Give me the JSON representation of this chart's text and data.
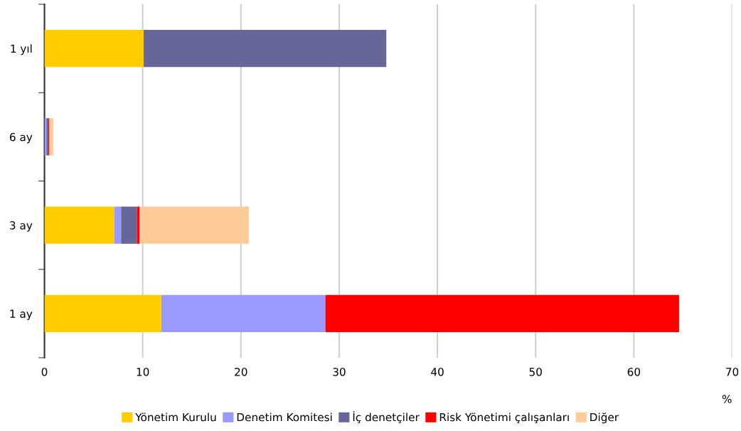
{
  "chart_data": {
    "type": "bar",
    "orientation": "horizontal",
    "stacked": true,
    "categories": [
      "1 yıl",
      "6 ay",
      "3 ay",
      "1 ay"
    ],
    "series": [
      {
        "name": "Yönetim Kurulu",
        "color": "#ffcc00",
        "values": [
          10.1,
          0,
          7.1,
          11.9
        ]
      },
      {
        "name": "Denetim Komitesi",
        "color": "#9999ff",
        "values": [
          0,
          0.2,
          0.7,
          16.7
        ]
      },
      {
        "name": "İç denetçiler",
        "color": "#666699",
        "values": [
          24.7,
          0.2,
          1.6,
          0
        ]
      },
      {
        "name": "Risk Yönetimi çalışanları",
        "color": "#ff0000",
        "values": [
          0,
          0.1,
          0.3,
          36.0
        ]
      },
      {
        "name": "Diğer",
        "color": "#ffcc99",
        "values": [
          0,
          0.4,
          11.1,
          0
        ]
      }
    ],
    "xlabel": "%",
    "xlim": [
      0,
      70
    ],
    "xticks": [
      0,
      10,
      20,
      30,
      40,
      50,
      60,
      70
    ],
    "grid": "x",
    "legend": "bottom"
  }
}
